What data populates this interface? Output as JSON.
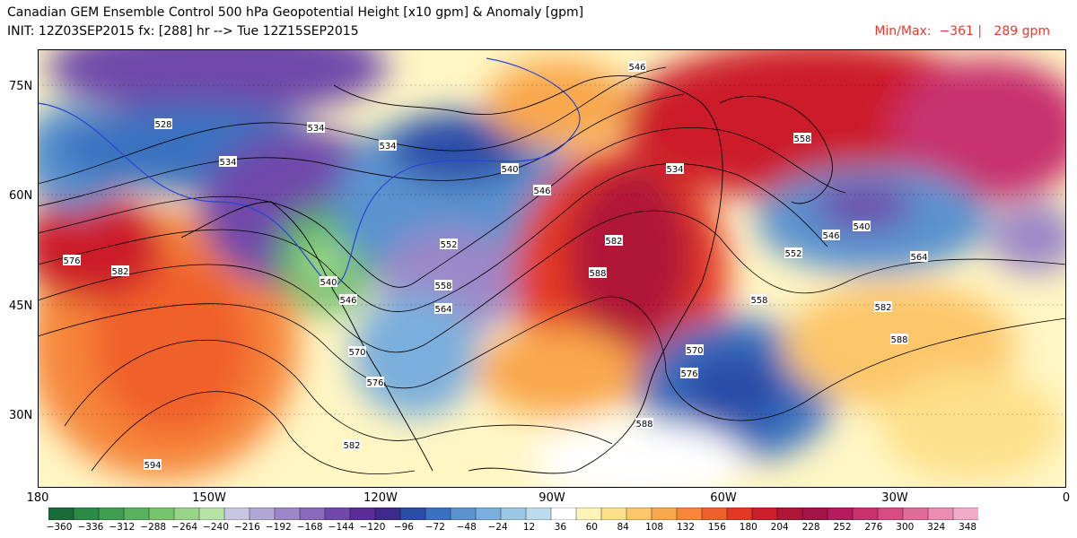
{
  "header": {
    "title": "Canadian GEM Ensemble Control 500 hPa Geopotential Height [x10 gpm] & Anomaly [gpm]",
    "subtitle": "INIT: 12Z03SEP2015 fx: [288] hr --> Tue 12Z15SEP2015",
    "minmax": "Min/Max:  −361 |   289 gpm"
  },
  "map": {
    "lat_labels": [
      "75N",
      "60N",
      "45N",
      "30N"
    ],
    "lon_labels": [
      "180",
      "150W",
      "120W",
      "90W",
      "60W",
      "30W",
      "0"
    ],
    "contour_labels": [
      {
        "text": "546"
      },
      {
        "text": "528"
      },
      {
        "text": "534"
      },
      {
        "text": "534"
      },
      {
        "text": "534"
      },
      {
        "text": "558"
      },
      {
        "text": "534"
      },
      {
        "text": "540"
      },
      {
        "text": "546"
      },
      {
        "text": "540"
      },
      {
        "text": "546"
      },
      {
        "text": "552"
      },
      {
        "text": "564"
      },
      {
        "text": "552"
      },
      {
        "text": "582"
      },
      {
        "text": "588"
      },
      {
        "text": "576"
      },
      {
        "text": "582"
      },
      {
        "text": "540"
      },
      {
        "text": "546"
      },
      {
        "text": "558"
      },
      {
        "text": "564"
      },
      {
        "text": "570"
      },
      {
        "text": "576"
      },
      {
        "text": "582"
      },
      {
        "text": "558"
      },
      {
        "text": "582"
      },
      {
        "text": "588"
      },
      {
        "text": "570"
      },
      {
        "text": "576"
      },
      {
        "text": "588"
      },
      {
        "text": "594"
      }
    ],
    "anomaly_range_gpm": [
      -361,
      289
    ]
  },
  "colorbar": {
    "labels": [
      "-360",
      "-336",
      "-312",
      "-288",
      "-264",
      "-240",
      "-216",
      "-192",
      "-168",
      "-144",
      "-120",
      "-96",
      "-72",
      "-48",
      "-24",
      "12",
      "36",
      "60",
      "84",
      "108",
      "132",
      "156",
      "180",
      "204",
      "228",
      "252",
      "276",
      "300",
      "324",
      "348"
    ],
    "colors": [
      "#1a6b3a",
      "#2b8a45",
      "#3f9e50",
      "#58b35e",
      "#76c46c",
      "#98d488",
      "#b7e3a6",
      "#c9c6e2",
      "#b2a8d6",
      "#9c88c8",
      "#8768ba",
      "#7048aa",
      "#5c2c98",
      "#3d2a8c",
      "#2a4ea8",
      "#3b72c0",
      "#5a93cf",
      "#7aaedc",
      "#9cc8e6",
      "#bddbee",
      "#ffffff",
      "#fff3b8",
      "#fde08a",
      "#fcc66a",
      "#f9a84e",
      "#f6863a",
      "#f0602c",
      "#e43a24",
      "#cc1f2a",
      "#b01638",
      "#a31446",
      "#b51b5c",
      "#c8316e",
      "#d54c82",
      "#e06c98",
      "#eb8cb0",
      "#f3acc8"
    ]
  }
}
